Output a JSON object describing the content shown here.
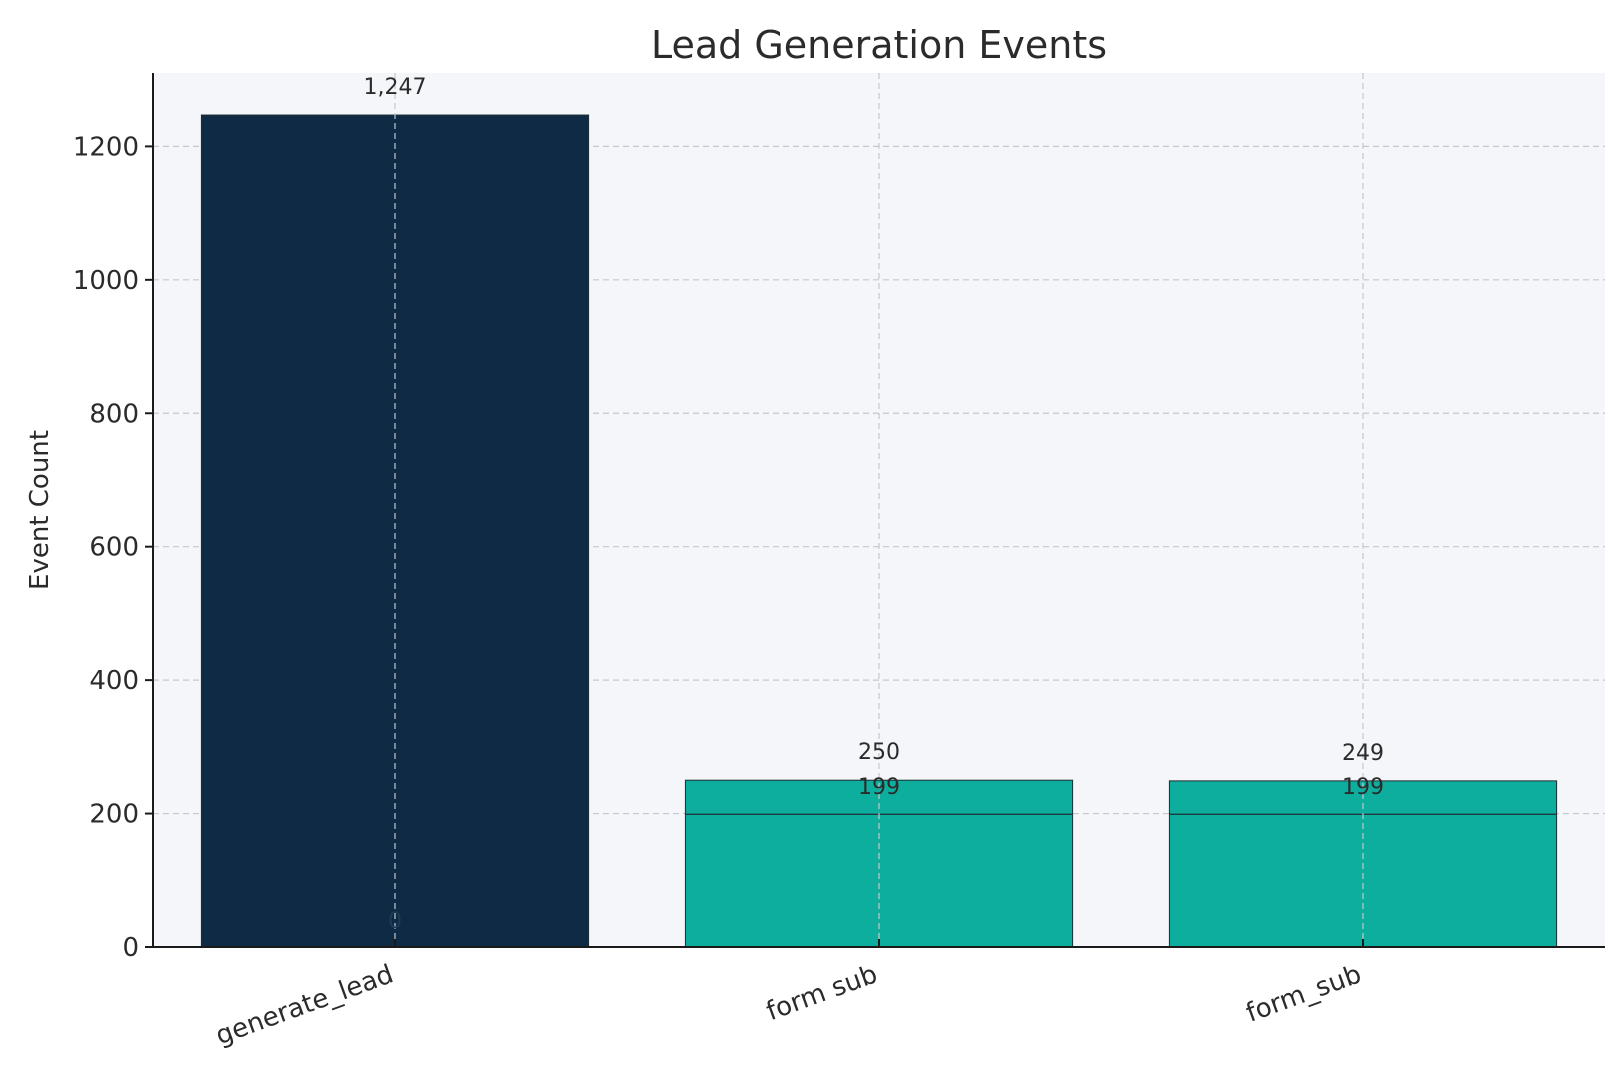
{
  "chart_data": {
    "type": "bar",
    "title": "Lead Generation Events",
    "xlabel": "",
    "ylabel": "Event Count",
    "ylim": [
      0,
      1310
    ],
    "yticks": [
      0,
      200,
      400,
      600,
      800,
      1000,
      1200
    ],
    "grid": true,
    "categories": [
      "generate_lead",
      "form sub",
      "form_sub"
    ],
    "values": [
      1247,
      250,
      249
    ],
    "inner_values": [
      0,
      199,
      199
    ],
    "value_labels": [
      "1,247",
      "250",
      "249"
    ],
    "inner_value_labels": [
      "0",
      "199",
      "199"
    ],
    "colors": [
      "#0f2a44",
      "#0eae9e",
      "#0eae9e"
    ],
    "plot_background": "#f5f6fa"
  }
}
